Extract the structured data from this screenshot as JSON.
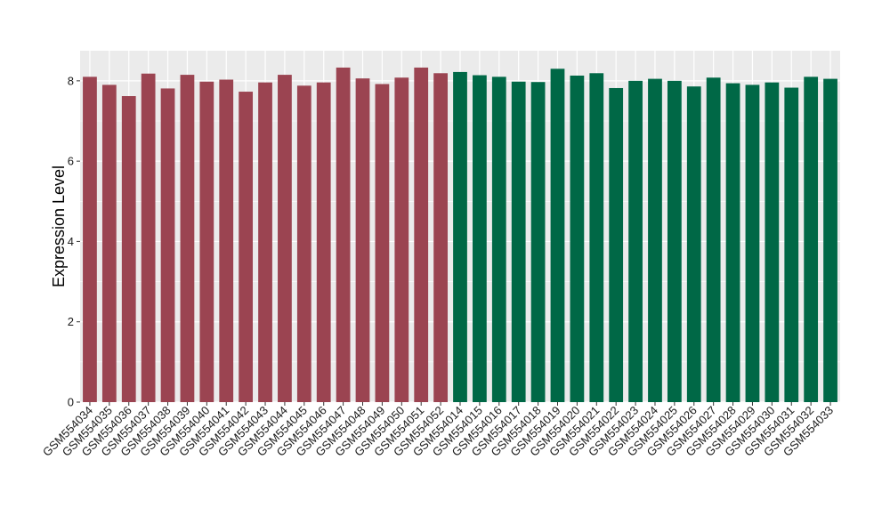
{
  "chart_data": {
    "type": "bar",
    "ylabel": "Expression Level",
    "xlabel": "",
    "title": "",
    "ylim": [
      0,
      8.75
    ],
    "yticks": [
      0,
      2,
      4,
      6,
      8
    ],
    "grid": true,
    "legend": "none",
    "background_color": "#ebebeb",
    "grid_color": "#ffffff",
    "group_colors": [
      "#9b4451",
      "#006846"
    ],
    "categories": [
      "GSM554034",
      "GSM554035",
      "GSM554036",
      "GSM554037",
      "GSM554038",
      "GSM554039",
      "GSM554040",
      "GSM554041",
      "GSM554042",
      "GSM554043",
      "GSM554044",
      "GSM554045",
      "GSM554046",
      "GSM554047",
      "GSM554048",
      "GSM554049",
      "GSM554050",
      "GSM554051",
      "GSM554052",
      "GSM554014",
      "GSM554015",
      "GSM554016",
      "GSM554017",
      "GSM554018",
      "GSM554019",
      "GSM554020",
      "GSM554021",
      "GSM554022",
      "GSM554023",
      "GSM554024",
      "GSM554025",
      "GSM554026",
      "GSM554027",
      "GSM554028",
      "GSM554029",
      "GSM554030",
      "GSM554031",
      "GSM554032",
      "GSM554033"
    ],
    "values": [
      8.1,
      7.9,
      7.62,
      8.18,
      7.81,
      8.15,
      7.98,
      8.03,
      7.73,
      7.96,
      8.15,
      7.88,
      7.96,
      8.33,
      8.06,
      7.92,
      8.08,
      8.33,
      8.19,
      8.22,
      8.14,
      8.1,
      7.98,
      7.97,
      8.3,
      8.13,
      8.19,
      7.82,
      8.0,
      8.05,
      8.0,
      7.86,
      8.08,
      7.94,
      7.9,
      7.96,
      7.83,
      8.1,
      8.05
    ],
    "groups": [
      0,
      0,
      0,
      0,
      0,
      0,
      0,
      0,
      0,
      0,
      0,
      0,
      0,
      0,
      0,
      0,
      0,
      0,
      0,
      1,
      1,
      1,
      1,
      1,
      1,
      1,
      1,
      1,
      1,
      1,
      1,
      1,
      1,
      1,
      1,
      1,
      1,
      1,
      1
    ]
  }
}
